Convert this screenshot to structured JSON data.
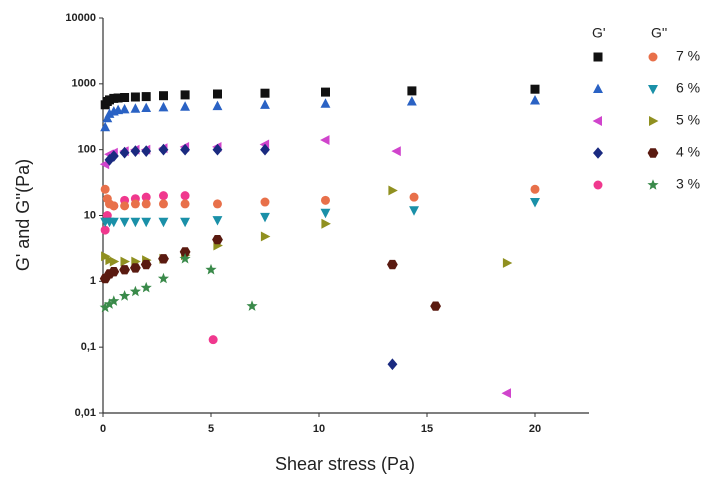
{
  "chart_data": {
    "type": "scatter",
    "x_label": "Shear stress (Pa)",
    "y_label": "G' and G''(Pa)",
    "xlim": [
      0,
      22.5
    ],
    "xticks": [
      0,
      5,
      10,
      15,
      20
    ],
    "ylim": [
      0.01,
      10000
    ],
    "log_y": true,
    "yticks": [
      {
        "value": 0.01,
        "label": "0,01"
      },
      {
        "value": 0.1,
        "label": "0,1"
      },
      1,
      10,
      100,
      1000,
      10000
    ],
    "groups": [
      {
        "name": "G'",
        "series": [
          {
            "color": "#111111",
            "marker": "square",
            "x": [
              0.1,
              0.2,
              0.3,
              0.5,
              0.7,
              1,
              1.5,
              2,
              2.8,
              3.8,
              5.3,
              7.5,
              10.3,
              14.3,
              20
            ],
            "values": [
              480,
              540,
              570,
              600,
              610,
              620,
              630,
              640,
              660,
              680,
              700,
              720,
              750,
              780,
              830
            ]
          },
          {
            "color": "#2a62c4",
            "marker": "triangle-up",
            "x": [
              0.1,
              0.2,
              0.3,
              0.5,
              0.7,
              1,
              1.5,
              2,
              2.8,
              3.8,
              5.3,
              7.5,
              10.3,
              14.3,
              20
            ],
            "values": [
              220,
              300,
              350,
              380,
              400,
              410,
              420,
              430,
              440,
              450,
              460,
              480,
              500,
              540,
              560
            ]
          },
          {
            "color": "#d044cc",
            "marker": "triangle-left",
            "x": [
              0.1,
              0.3,
              0.5,
              1,
              1.5,
              2,
              2.8,
              3.8,
              5.3,
              7.5,
              10.3,
              13.6,
              18.7
            ],
            "values": [
              60,
              85,
              90,
              95,
              100,
              100,
              105,
              110,
              110,
              120,
              140,
              95,
              0.02
            ]
          },
          {
            "color": "#1a2a80",
            "marker": "diamond",
            "x": [
              0.3,
              0.5,
              1,
              1.5,
              2,
              2.8,
              3.8,
              5.3,
              7.5,
              13.4
            ],
            "values": [
              70,
              80,
              90,
              95,
              95,
              100,
              100,
              100,
              100,
              0.055
            ]
          },
          {
            "color": "#f0388e",
            "marker": "circle",
            "x": [
              0.1,
              0.2,
              0.5,
              1,
              1.5,
              2,
              2.8,
              3.8,
              5.1
            ],
            "values": [
              6,
              10,
              14,
              17,
              18,
              19,
              20,
              20,
              0.13
            ]
          }
        ]
      },
      {
        "name": "G''",
        "series": [
          {
            "name": "7 %",
            "color": "#e8704a",
            "marker": "circle",
            "x": [
              0.1,
              0.2,
              0.3,
              0.5,
              1,
              1.5,
              2,
              2.8,
              3.8,
              5.3,
              7.5,
              10.3,
              14.4,
              20
            ],
            "values": [
              25,
              18,
              15,
              14,
              14,
              15,
              15,
              15,
              15,
              15,
              16,
              17,
              19,
              25
            ]
          },
          {
            "name": "6 %",
            "color": "#1a90a8",
            "marker": "triangle-down",
            "x": [
              0.1,
              0.3,
              0.5,
              1,
              1.5,
              2,
              2.8,
              3.8,
              5.3,
              7.5,
              10.3,
              14.4,
              20
            ],
            "values": [
              8,
              8,
              8,
              8,
              8,
              8,
              8,
              8,
              8.5,
              9.5,
              11,
              12,
              16
            ]
          },
          {
            "name": "5 %",
            "color": "#909020",
            "marker": "triangle-right",
            "x": [
              0.1,
              0.3,
              0.5,
              1,
              1.5,
              2,
              2.8,
              3.8,
              5.3,
              7.5,
              10.3,
              13.4,
              18.7
            ],
            "values": [
              2.4,
              2.1,
              2,
              2,
              2,
              2.1,
              2.2,
              2.5,
              3.5,
              4.8,
              7.5,
              24,
              1.9
            ]
          },
          {
            "name": "4 %",
            "color": "#5a1a10",
            "marker": "hexagon",
            "x": [
              0.1,
              0.3,
              0.5,
              1,
              1.5,
              2,
              2.8,
              3.8,
              5.3,
              13.4,
              15.4
            ],
            "values": [
              1.1,
              1.3,
              1.4,
              1.5,
              1.6,
              1.8,
              2.2,
              2.8,
              4.3,
              1.8,
              0.42
            ]
          },
          {
            "name": "3 %",
            "color": "#3a8a4a",
            "marker": "star",
            "x": [
              0.1,
              0.3,
              0.5,
              1,
              1.5,
              2,
              2.8,
              3.8,
              5,
              6.9
            ],
            "values": [
              0.4,
              0.45,
              0.5,
              0.6,
              0.7,
              0.8,
              1.1,
              2.2,
              1.5,
              0.42
            ]
          }
        ]
      }
    ]
  }
}
